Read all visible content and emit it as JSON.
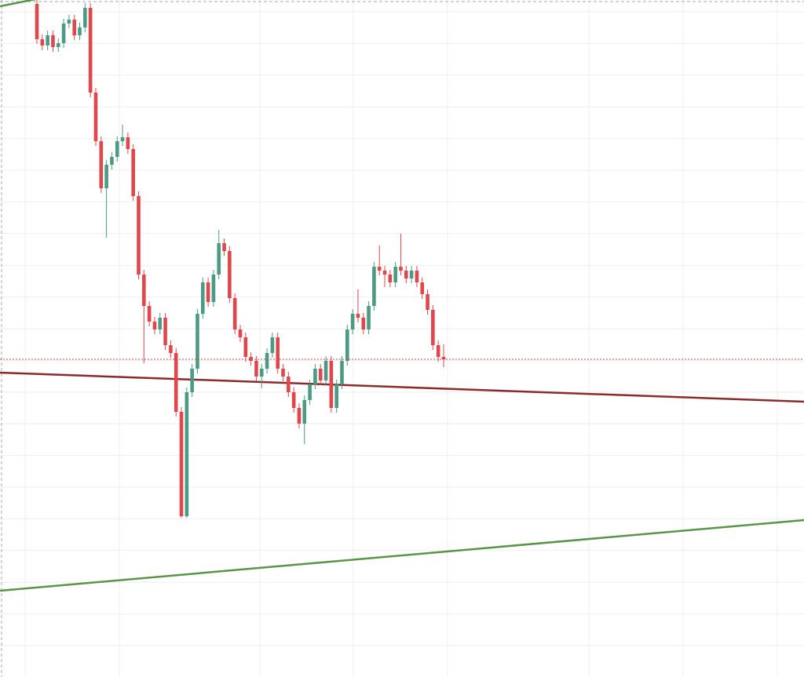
{
  "chart_data": {
    "type": "candlestick",
    "ylim": [
      0,
      863
    ],
    "up_color": "#4a9a84",
    "down_color": "#e0474c",
    "last_price_color": "#e0474c",
    "open": [
      858,
      813,
      805,
      818,
      803,
      808,
      833,
      838,
      818,
      828,
      853,
      745,
      683,
      623,
      653,
      663,
      683,
      688,
      673,
      613,
      513,
      473,
      453,
      443,
      458,
      423,
      413,
      338,
      205,
      363,
      393,
      463,
      503,
      478,
      513,
      553,
      543,
      483,
      443,
      433,
      408,
      403,
      383,
      393,
      413,
      433,
      393,
      383,
      363,
      343,
      323,
      353,
      373,
      393,
      378,
      403,
      343,
      373,
      403,
      443,
      463,
      458,
      443,
      473,
      523,
      518,
      513,
      503,
      523,
      518,
      508,
      518,
      503,
      488,
      468,
      423,
      408
    ],
    "high": [
      864,
      819,
      824,
      824,
      814,
      839,
      844,
      844,
      834,
      859,
      859,
      751,
      689,
      659,
      669,
      689,
      704,
      694,
      679,
      619,
      519,
      479,
      459,
      464,
      464,
      429,
      419,
      344,
      369,
      399,
      469,
      509,
      509,
      519,
      570,
      559,
      549,
      489,
      449,
      439,
      414,
      409,
      399,
      419,
      439,
      439,
      399,
      389,
      369,
      349,
      359,
      379,
      399,
      399,
      409,
      409,
      379,
      409,
      449,
      469,
      494,
      464,
      479,
      529,
      550,
      524,
      519,
      529,
      565,
      524,
      524,
      524,
      509,
      494,
      474,
      429,
      424
    ],
    "low": [
      807,
      799,
      799,
      797,
      797,
      802,
      827,
      812,
      812,
      822,
      739,
      677,
      617,
      560,
      647,
      657,
      677,
      667,
      607,
      507,
      400,
      447,
      437,
      437,
      417,
      407,
      332,
      203,
      203,
      357,
      387,
      457,
      472,
      472,
      507,
      537,
      477,
      437,
      427,
      402,
      397,
      377,
      368,
      387,
      407,
      387,
      377,
      357,
      337,
      317,
      297,
      347,
      367,
      372,
      372,
      337,
      337,
      367,
      397,
      437,
      452,
      437,
      437,
      467,
      512,
      497,
      497,
      497,
      512,
      502,
      502,
      497,
      482,
      462,
      417,
      402,
      395
    ],
    "close": [
      813,
      805,
      818,
      803,
      808,
      833,
      838,
      818,
      828,
      853,
      745,
      683,
      623,
      653,
      663,
      683,
      688,
      673,
      613,
      513,
      473,
      453,
      443,
      458,
      423,
      413,
      338,
      205,
      363,
      393,
      463,
      503,
      478,
      513,
      553,
      543,
      483,
      443,
      433,
      408,
      403,
      383,
      393,
      413,
      433,
      393,
      383,
      363,
      343,
      323,
      353,
      373,
      393,
      378,
      403,
      343,
      373,
      403,
      443,
      463,
      458,
      443,
      473,
      523,
      518,
      513,
      503,
      523,
      518,
      508,
      518,
      503,
      488,
      468,
      423,
      408,
      405
    ]
  }
}
